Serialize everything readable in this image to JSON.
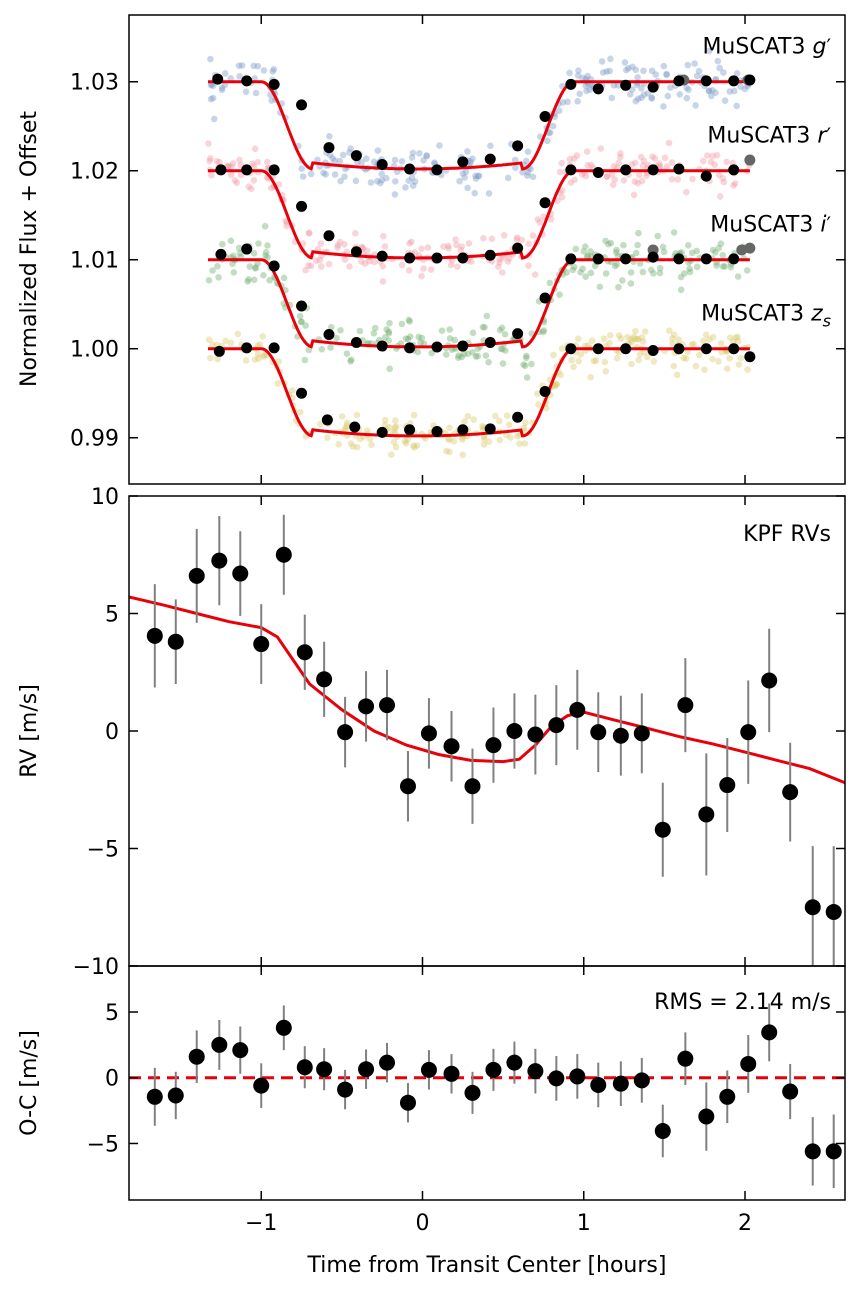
{
  "chart_data": [
    {
      "type": "scatter",
      "panel": "light-curves",
      "ylabel": "Normalized Flux + Offset",
      "xlim": [
        -1.82,
        2.62
      ],
      "ylim": [
        0.9848,
        1.0375
      ],
      "yticks": [
        {
          "v": 1.03,
          "t": "1.03"
        },
        {
          "v": 1.02,
          "t": "1.02"
        },
        {
          "v": 1.01,
          "t": "1.01"
        },
        {
          "v": 1.0,
          "t": "1.00"
        },
        {
          "v": 0.99,
          "t": "0.99"
        }
      ],
      "xticks": [
        -1,
        0,
        1,
        2
      ],
      "transit_model": {
        "t_start": -1.0,
        "t_full": -0.68,
        "t_full_end": 0.62,
        "t_end": 0.94,
        "depth": 0.0098
      },
      "series": [
        {
          "name": "g'",
          "label_base": "MuSCAT3 ",
          "label_sub": "g",
          "label_sup": "′",
          "offset": 1.03,
          "color": "#7b9cc8",
          "scatter": 0.0016,
          "binned": [
            [
              -1.27,
              1.0303
            ],
            [
              -1.09,
              1.0301
            ],
            [
              -0.92,
              1.0297
            ],
            [
              -0.75,
              1.0274
            ],
            [
              -0.58,
              1.0226
            ],
            [
              -0.41,
              1.0217
            ],
            [
              -0.25,
              1.0207
            ],
            [
              -0.08,
              1.0202
            ],
            [
              0.09,
              1.0201
            ],
            [
              0.25,
              1.021
            ],
            [
              0.42,
              1.0213
            ],
            [
              0.59,
              1.0228
            ],
            [
              0.76,
              1.0261
            ],
            [
              0.92,
              1.0297
            ],
            [
              1.09,
              1.0292
            ],
            [
              1.26,
              1.0296
            ],
            [
              1.43,
              1.0294
            ],
            [
              1.59,
              1.0301
            ],
            [
              1.76,
              1.0301
            ],
            [
              1.93,
              1.0301
            ],
            [
              2.03,
              1.0302
            ]
          ],
          "outliers": [
            [
              1.62,
              1.0302
            ],
            [
              2.02,
              1.0302
            ]
          ]
        },
        {
          "name": "r'",
          "label_base": "MuSCAT3 ",
          "label_sub": "r",
          "label_sup": "′",
          "offset": 1.02,
          "color": "#f09aa6",
          "scatter": 0.0015,
          "binned": [
            [
              -1.25,
              1.0201
            ],
            [
              -1.09,
              1.0201
            ],
            [
              -0.92,
              1.0201
            ],
            [
              -0.75,
              1.016
            ],
            [
              -0.58,
              1.0127
            ],
            [
              -0.41,
              1.0109
            ],
            [
              -0.25,
              1.0104
            ],
            [
              -0.08,
              1.0102
            ],
            [
              0.09,
              1.0102
            ],
            [
              0.25,
              1.0102
            ],
            [
              0.42,
              1.0105
            ],
            [
              0.59,
              1.0113
            ],
            [
              0.76,
              1.0164
            ],
            [
              0.92,
              1.0201
            ],
            [
              1.09,
              1.0198
            ],
            [
              1.26,
              1.0201
            ],
            [
              1.43,
              1.0201
            ],
            [
              1.59,
              1.0202
            ],
            [
              1.76,
              1.0194
            ],
            [
              1.93,
              1.0201
            ]
          ],
          "outliers": [
            [
              2.03,
              1.0212
            ]
          ]
        },
        {
          "name": "i'",
          "label_base": "MuSCAT3 ",
          "label_sub": "i",
          "label_sup": "′",
          "offset": 1.01,
          "color": "#6fae6f",
          "scatter": 0.0017,
          "binned": [
            [
              -1.25,
              1.0106
            ],
            [
              -1.09,
              1.0112
            ],
            [
              -0.92,
              1.0093
            ],
            [
              -0.75,
              1.0048
            ],
            [
              -0.58,
              1.0016
            ],
            [
              -0.41,
              1.0007
            ],
            [
              -0.25,
              1.0003
            ],
            [
              -0.08,
              1.0001
            ],
            [
              0.09,
              1.0002
            ],
            [
              0.25,
              1.0003
            ],
            [
              0.42,
              1.0007
            ],
            [
              0.59,
              1.0017
            ],
            [
              0.76,
              1.0057
            ],
            [
              0.92,
              1.0101
            ],
            [
              1.09,
              1.0101
            ],
            [
              1.26,
              1.0101
            ],
            [
              1.43,
              1.0103
            ],
            [
              1.59,
              1.0101
            ],
            [
              1.76,
              1.0101
            ],
            [
              1.93,
              1.0101
            ]
          ],
          "outliers": [
            [
              1.43,
              1.0111
            ],
            [
              1.98,
              1.0111
            ],
            [
              2.03,
              1.0113
            ]
          ]
        },
        {
          "name": "zs",
          "label_base": "MuSCAT3 ",
          "label_sub": "z",
          "label_sup": "s",
          "offset": 1.0,
          "color": "#d9c76a",
          "scatter": 0.0015,
          "binned": [
            [
              -1.26,
              0.9997
            ],
            [
              -1.09,
              1.0001
            ],
            [
              -0.92,
              1.0001
            ],
            [
              -0.75,
              0.995
            ],
            [
              -0.59,
              0.992
            ],
            [
              -0.42,
              0.9912
            ],
            [
              -0.25,
              0.9906
            ],
            [
              -0.08,
              0.9909
            ],
            [
              0.09,
              0.9907
            ],
            [
              0.25,
              0.9909
            ],
            [
              0.42,
              0.991
            ],
            [
              0.59,
              0.9923
            ],
            [
              0.76,
              0.9952
            ],
            [
              0.92,
              1.0
            ],
            [
              1.09,
              1.0
            ],
            [
              1.26,
              1.0
            ],
            [
              1.43,
              0.9998
            ],
            [
              1.59,
              1.0
            ],
            [
              1.76,
              1.0
            ],
            [
              1.93,
              1.0
            ],
            [
              2.03,
              0.9991
            ]
          ],
          "outliers": []
        }
      ]
    },
    {
      "type": "scatter",
      "panel": "radial-velocity",
      "title": "KPF RVs",
      "ylabel": "RV [m/s]",
      "xlim": [
        -1.82,
        2.62
      ],
      "ylim": [
        -10,
        10
      ],
      "yticks": [
        {
          "v": 10,
          "t": "10"
        },
        {
          "v": 5,
          "t": "5"
        },
        {
          "v": 0,
          "t": "0"
        },
        {
          "v": -5,
          "t": "−5"
        },
        {
          "v": -10,
          "t": "−10"
        }
      ],
      "xticks": [
        -1,
        0,
        1,
        2
      ],
      "model_line": [
        [
          -1.82,
          5.7
        ],
        [
          -1.6,
          5.35
        ],
        [
          -1.4,
          5.0
        ],
        [
          -1.2,
          4.65
        ],
        [
          -1.0,
          4.4
        ],
        [
          -0.9,
          4.0
        ],
        [
          -0.8,
          3.0
        ],
        [
          -0.7,
          2.0
        ],
        [
          -0.5,
          0.9
        ],
        [
          -0.3,
          0.0
        ],
        [
          -0.1,
          -0.6
        ],
        [
          0.1,
          -1.0
        ],
        [
          0.3,
          -1.25
        ],
        [
          0.5,
          -1.3
        ],
        [
          0.6,
          -1.2
        ],
        [
          0.7,
          -0.6
        ],
        [
          0.8,
          0.2
        ],
        [
          0.9,
          0.65
        ],
        [
          1.0,
          0.8
        ],
        [
          1.2,
          0.45
        ],
        [
          1.4,
          0.1
        ],
        [
          1.6,
          -0.25
        ],
        [
          1.8,
          -0.55
        ],
        [
          2.0,
          -0.9
        ],
        [
          2.2,
          -1.25
        ],
        [
          2.4,
          -1.6
        ],
        [
          2.62,
          -2.2
        ]
      ],
      "points": [
        [
          -1.66,
          4.05,
          2.2
        ],
        [
          -1.53,
          3.8,
          1.8
        ],
        [
          -1.4,
          6.6,
          2.0
        ],
        [
          -1.26,
          7.25,
          1.9
        ],
        [
          -1.13,
          6.7,
          1.8
        ],
        [
          -1.0,
          3.7,
          1.7
        ],
        [
          -0.86,
          7.5,
          1.7
        ],
        [
          -0.73,
          3.35,
          1.6
        ],
        [
          -0.61,
          2.2,
          1.6
        ],
        [
          -0.48,
          -0.05,
          1.5
        ],
        [
          -0.35,
          1.05,
          1.5
        ],
        [
          -0.22,
          1.1,
          1.5
        ],
        [
          -0.09,
          -2.35,
          1.5
        ],
        [
          0.04,
          -0.1,
          1.5
        ],
        [
          0.18,
          -0.65,
          1.5
        ],
        [
          0.31,
          -2.35,
          1.6
        ],
        [
          0.44,
          -0.6,
          1.6
        ],
        [
          0.57,
          0.0,
          1.6
        ],
        [
          0.7,
          -0.15,
          1.7
        ],
        [
          0.83,
          0.25,
          1.7
        ],
        [
          0.96,
          0.9,
          1.7
        ],
        [
          1.09,
          -0.05,
          1.7
        ],
        [
          1.23,
          -0.2,
          1.7
        ],
        [
          1.36,
          -0.1,
          1.7
        ],
        [
          1.49,
          -4.2,
          2.0
        ],
        [
          1.63,
          1.1,
          2.0
        ],
        [
          1.76,
          -3.55,
          2.6
        ],
        [
          1.89,
          -2.3,
          2.0
        ],
        [
          2.02,
          -0.05,
          2.2
        ],
        [
          2.15,
          2.15,
          2.2
        ],
        [
          2.28,
          -2.6,
          2.1
        ],
        [
          2.42,
          -7.5,
          2.6
        ],
        [
          2.55,
          -7.7,
          2.8
        ]
      ]
    },
    {
      "type": "scatter",
      "panel": "residuals",
      "title": "RMS = 2.14 m/s",
      "ylabel": "O-C [m/s]",
      "xlabel": "Time from Transit Center [hours]",
      "xlim": [
        -1.82,
        2.62
      ],
      "ylim": [
        -9.3,
        8.5
      ],
      "yticks": [
        {
          "v": 5,
          "t": "5"
        },
        {
          "v": 0,
          "t": "0"
        },
        {
          "v": -5,
          "t": "−5"
        }
      ],
      "xticks": [
        {
          "v": -1,
          "t": "−1"
        },
        {
          "v": 0,
          "t": "0"
        },
        {
          "v": 1,
          "t": "1"
        },
        {
          "v": 2,
          "t": "2"
        }
      ],
      "zero_line": 0,
      "points": [
        [
          -1.66,
          -1.45,
          2.2
        ],
        [
          -1.53,
          -1.35,
          1.8
        ],
        [
          -1.4,
          1.6,
          2.0
        ],
        [
          -1.26,
          2.5,
          1.9
        ],
        [
          -1.13,
          2.1,
          1.8
        ],
        [
          -1.0,
          -0.6,
          1.7
        ],
        [
          -0.86,
          3.8,
          1.7
        ],
        [
          -0.73,
          0.8,
          1.6
        ],
        [
          -0.61,
          0.65,
          1.6
        ],
        [
          -0.48,
          -0.9,
          1.5
        ],
        [
          -0.35,
          0.65,
          1.5
        ],
        [
          -0.22,
          1.15,
          1.5
        ],
        [
          -0.09,
          -1.9,
          1.5
        ],
        [
          0.04,
          0.6,
          1.5
        ],
        [
          0.18,
          0.3,
          1.5
        ],
        [
          0.31,
          -1.15,
          1.6
        ],
        [
          0.44,
          0.6,
          1.6
        ],
        [
          0.57,
          1.15,
          1.6
        ],
        [
          0.7,
          0.5,
          1.7
        ],
        [
          0.83,
          -0.05,
          1.7
        ],
        [
          0.96,
          0.1,
          1.7
        ],
        [
          1.09,
          -0.55,
          1.7
        ],
        [
          1.23,
          -0.45,
          1.7
        ],
        [
          1.36,
          -0.2,
          1.7
        ],
        [
          1.49,
          -4.05,
          2.0
        ],
        [
          1.63,
          1.45,
          2.0
        ],
        [
          1.76,
          -2.95,
          2.6
        ],
        [
          1.89,
          -1.45,
          2.0
        ],
        [
          2.02,
          1.05,
          2.2
        ],
        [
          2.15,
          3.45,
          2.2
        ],
        [
          2.28,
          -1.05,
          2.1
        ],
        [
          2.42,
          -5.6,
          2.6
        ],
        [
          2.55,
          -5.6,
          2.8
        ]
      ]
    }
  ]
}
